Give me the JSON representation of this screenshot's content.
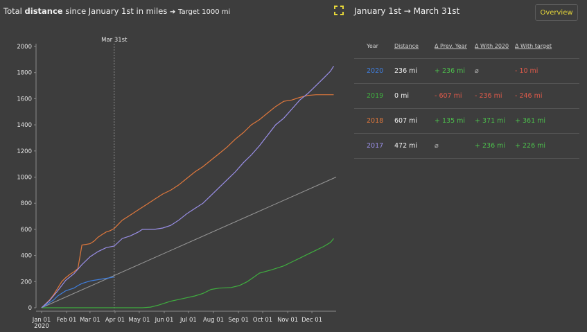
{
  "header": {
    "title_pre": "Total",
    "title_bold": "distance",
    "title_mid": "since January 1st in miles",
    "title_arrow": "➔",
    "title_target": "Target 1000 mi",
    "range_title": "January 1st → March 31st",
    "overview_label": "Overview"
  },
  "colors": {
    "2020": "#3f7fe0",
    "2019": "#3fae3f",
    "2018": "#e0783c",
    "2017": "#9a8fe8",
    "target": "#9a9a9a",
    "accent": "#e6d73a"
  },
  "table": {
    "headers": [
      "Year",
      "Distance",
      "Δ Prev. Year",
      "Δ With 2020",
      "Δ With target"
    ],
    "rows": [
      {
        "year": "2020",
        "distance": "236 mi",
        "prev": "+ 236 mi",
        "with2020": "⌀",
        "target": "- 10 mi"
      },
      {
        "year": "2019",
        "distance": "0 mi",
        "prev": "- 607 mi",
        "with2020": "- 236 mi",
        "target": "- 246 mi"
      },
      {
        "year": "2018",
        "distance": "607 mi",
        "prev": "+ 135 mi",
        "with2020": "+ 371 mi",
        "target": "+ 361 mi"
      },
      {
        "year": "2017",
        "distance": "472 mi",
        "prev": "⌀",
        "with2020": "+ 236 mi",
        "target": "+ 226 mi"
      }
    ]
  },
  "chart_data": {
    "type": "line",
    "ylim": [
      0,
      2000
    ],
    "yticks": [
      0,
      200,
      400,
      600,
      800,
      1000,
      1200,
      1400,
      1600,
      1800,
      2000
    ],
    "xlim": [
      0,
      365
    ],
    "xticks": [
      {
        "label": "Jan 01",
        "sub": "2020",
        "day": 0
      },
      {
        "label": "Feb 01",
        "day": 31
      },
      {
        "label": "Mar 01",
        "day": 60
      },
      {
        "label": "Apr 01",
        "day": 91
      },
      {
        "label": "May 01",
        "day": 121
      },
      {
        "label": "Jun 01",
        "day": 152
      },
      {
        "label": "Jul 01",
        "day": 182
      },
      {
        "label": "Aug 01",
        "day": 213
      },
      {
        "label": "Sep 01",
        "day": 244
      },
      {
        "label": "Oct 01",
        "day": 274
      },
      {
        "label": "Nov 01",
        "day": 305
      },
      {
        "label": "Dec 01",
        "day": 335
      }
    ],
    "marker": {
      "label": "Mar 31st",
      "day": 90
    },
    "series": [
      {
        "name": "target",
        "points": [
          [
            0,
            0
          ],
          [
            365,
            1000
          ]
        ]
      },
      {
        "name": "2020",
        "points": [
          [
            0,
            0
          ],
          [
            5,
            20
          ],
          [
            10,
            40
          ],
          [
            15,
            60
          ],
          [
            20,
            90
          ],
          [
            25,
            110
          ],
          [
            30,
            130
          ],
          [
            35,
            140
          ],
          [
            40,
            150
          ],
          [
            45,
            170
          ],
          [
            50,
            185
          ],
          [
            55,
            195
          ],
          [
            60,
            205
          ],
          [
            65,
            210
          ],
          [
            70,
            215
          ],
          [
            75,
            220
          ],
          [
            80,
            225
          ],
          [
            85,
            230
          ],
          [
            90,
            236
          ]
        ]
      },
      {
        "name": "2019",
        "points": [
          [
            0,
            0
          ],
          [
            125,
            0
          ],
          [
            135,
            5
          ],
          [
            145,
            20
          ],
          [
            150,
            30
          ],
          [
            160,
            50
          ],
          [
            175,
            70
          ],
          [
            190,
            90
          ],
          [
            200,
            110
          ],
          [
            210,
            140
          ],
          [
            220,
            150
          ],
          [
            235,
            155
          ],
          [
            245,
            170
          ],
          [
            255,
            200
          ],
          [
            262,
            230
          ],
          [
            270,
            265
          ],
          [
            285,
            290
          ],
          [
            300,
            320
          ],
          [
            310,
            350
          ],
          [
            320,
            380
          ],
          [
            330,
            410
          ],
          [
            340,
            440
          ],
          [
            350,
            470
          ],
          [
            358,
            500
          ],
          [
            362,
            530
          ]
        ]
      },
      {
        "name": "2018",
        "points": [
          [
            0,
            0
          ],
          [
            10,
            60
          ],
          [
            15,
            100
          ],
          [
            20,
            150
          ],
          [
            25,
            200
          ],
          [
            30,
            230
          ],
          [
            35,
            255
          ],
          [
            40,
            275
          ],
          [
            45,
            300
          ],
          [
            50,
            480
          ],
          [
            55,
            485
          ],
          [
            60,
            490
          ],
          [
            65,
            510
          ],
          [
            70,
            540
          ],
          [
            75,
            560
          ],
          [
            80,
            580
          ],
          [
            85,
            590
          ],
          [
            90,
            607
          ],
          [
            100,
            670
          ],
          [
            110,
            710
          ],
          [
            120,
            750
          ],
          [
            130,
            790
          ],
          [
            140,
            830
          ],
          [
            150,
            870
          ],
          [
            160,
            900
          ],
          [
            170,
            940
          ],
          [
            180,
            990
          ],
          [
            190,
            1040
          ],
          [
            200,
            1080
          ],
          [
            210,
            1130
          ],
          [
            220,
            1180
          ],
          [
            230,
            1230
          ],
          [
            240,
            1290
          ],
          [
            250,
            1340
          ],
          [
            260,
            1400
          ],
          [
            270,
            1440
          ],
          [
            280,
            1490
          ],
          [
            290,
            1540
          ],
          [
            300,
            1580
          ],
          [
            310,
            1590
          ],
          [
            320,
            1610
          ],
          [
            330,
            1625
          ],
          [
            340,
            1630
          ],
          [
            350,
            1630
          ],
          [
            362,
            1630
          ]
        ]
      },
      {
        "name": "2017",
        "points": [
          [
            0,
            0
          ],
          [
            10,
            55
          ],
          [
            20,
            130
          ],
          [
            30,
            210
          ],
          [
            40,
            260
          ],
          [
            50,
            330
          ],
          [
            60,
            390
          ],
          [
            70,
            430
          ],
          [
            80,
            460
          ],
          [
            90,
            472
          ],
          [
            100,
            530
          ],
          [
            110,
            550
          ],
          [
            120,
            580
          ],
          [
            125,
            600
          ],
          [
            140,
            600
          ],
          [
            150,
            610
          ],
          [
            160,
            630
          ],
          [
            170,
            670
          ],
          [
            180,
            720
          ],
          [
            190,
            760
          ],
          [
            200,
            800
          ],
          [
            210,
            860
          ],
          [
            220,
            920
          ],
          [
            230,
            980
          ],
          [
            240,
            1040
          ],
          [
            250,
            1110
          ],
          [
            260,
            1170
          ],
          [
            270,
            1240
          ],
          [
            280,
            1320
          ],
          [
            290,
            1400
          ],
          [
            300,
            1450
          ],
          [
            310,
            1520
          ],
          [
            320,
            1590
          ],
          [
            330,
            1640
          ],
          [
            340,
            1700
          ],
          [
            350,
            1760
          ],
          [
            358,
            1810
          ],
          [
            362,
            1850
          ]
        ]
      }
    ]
  }
}
